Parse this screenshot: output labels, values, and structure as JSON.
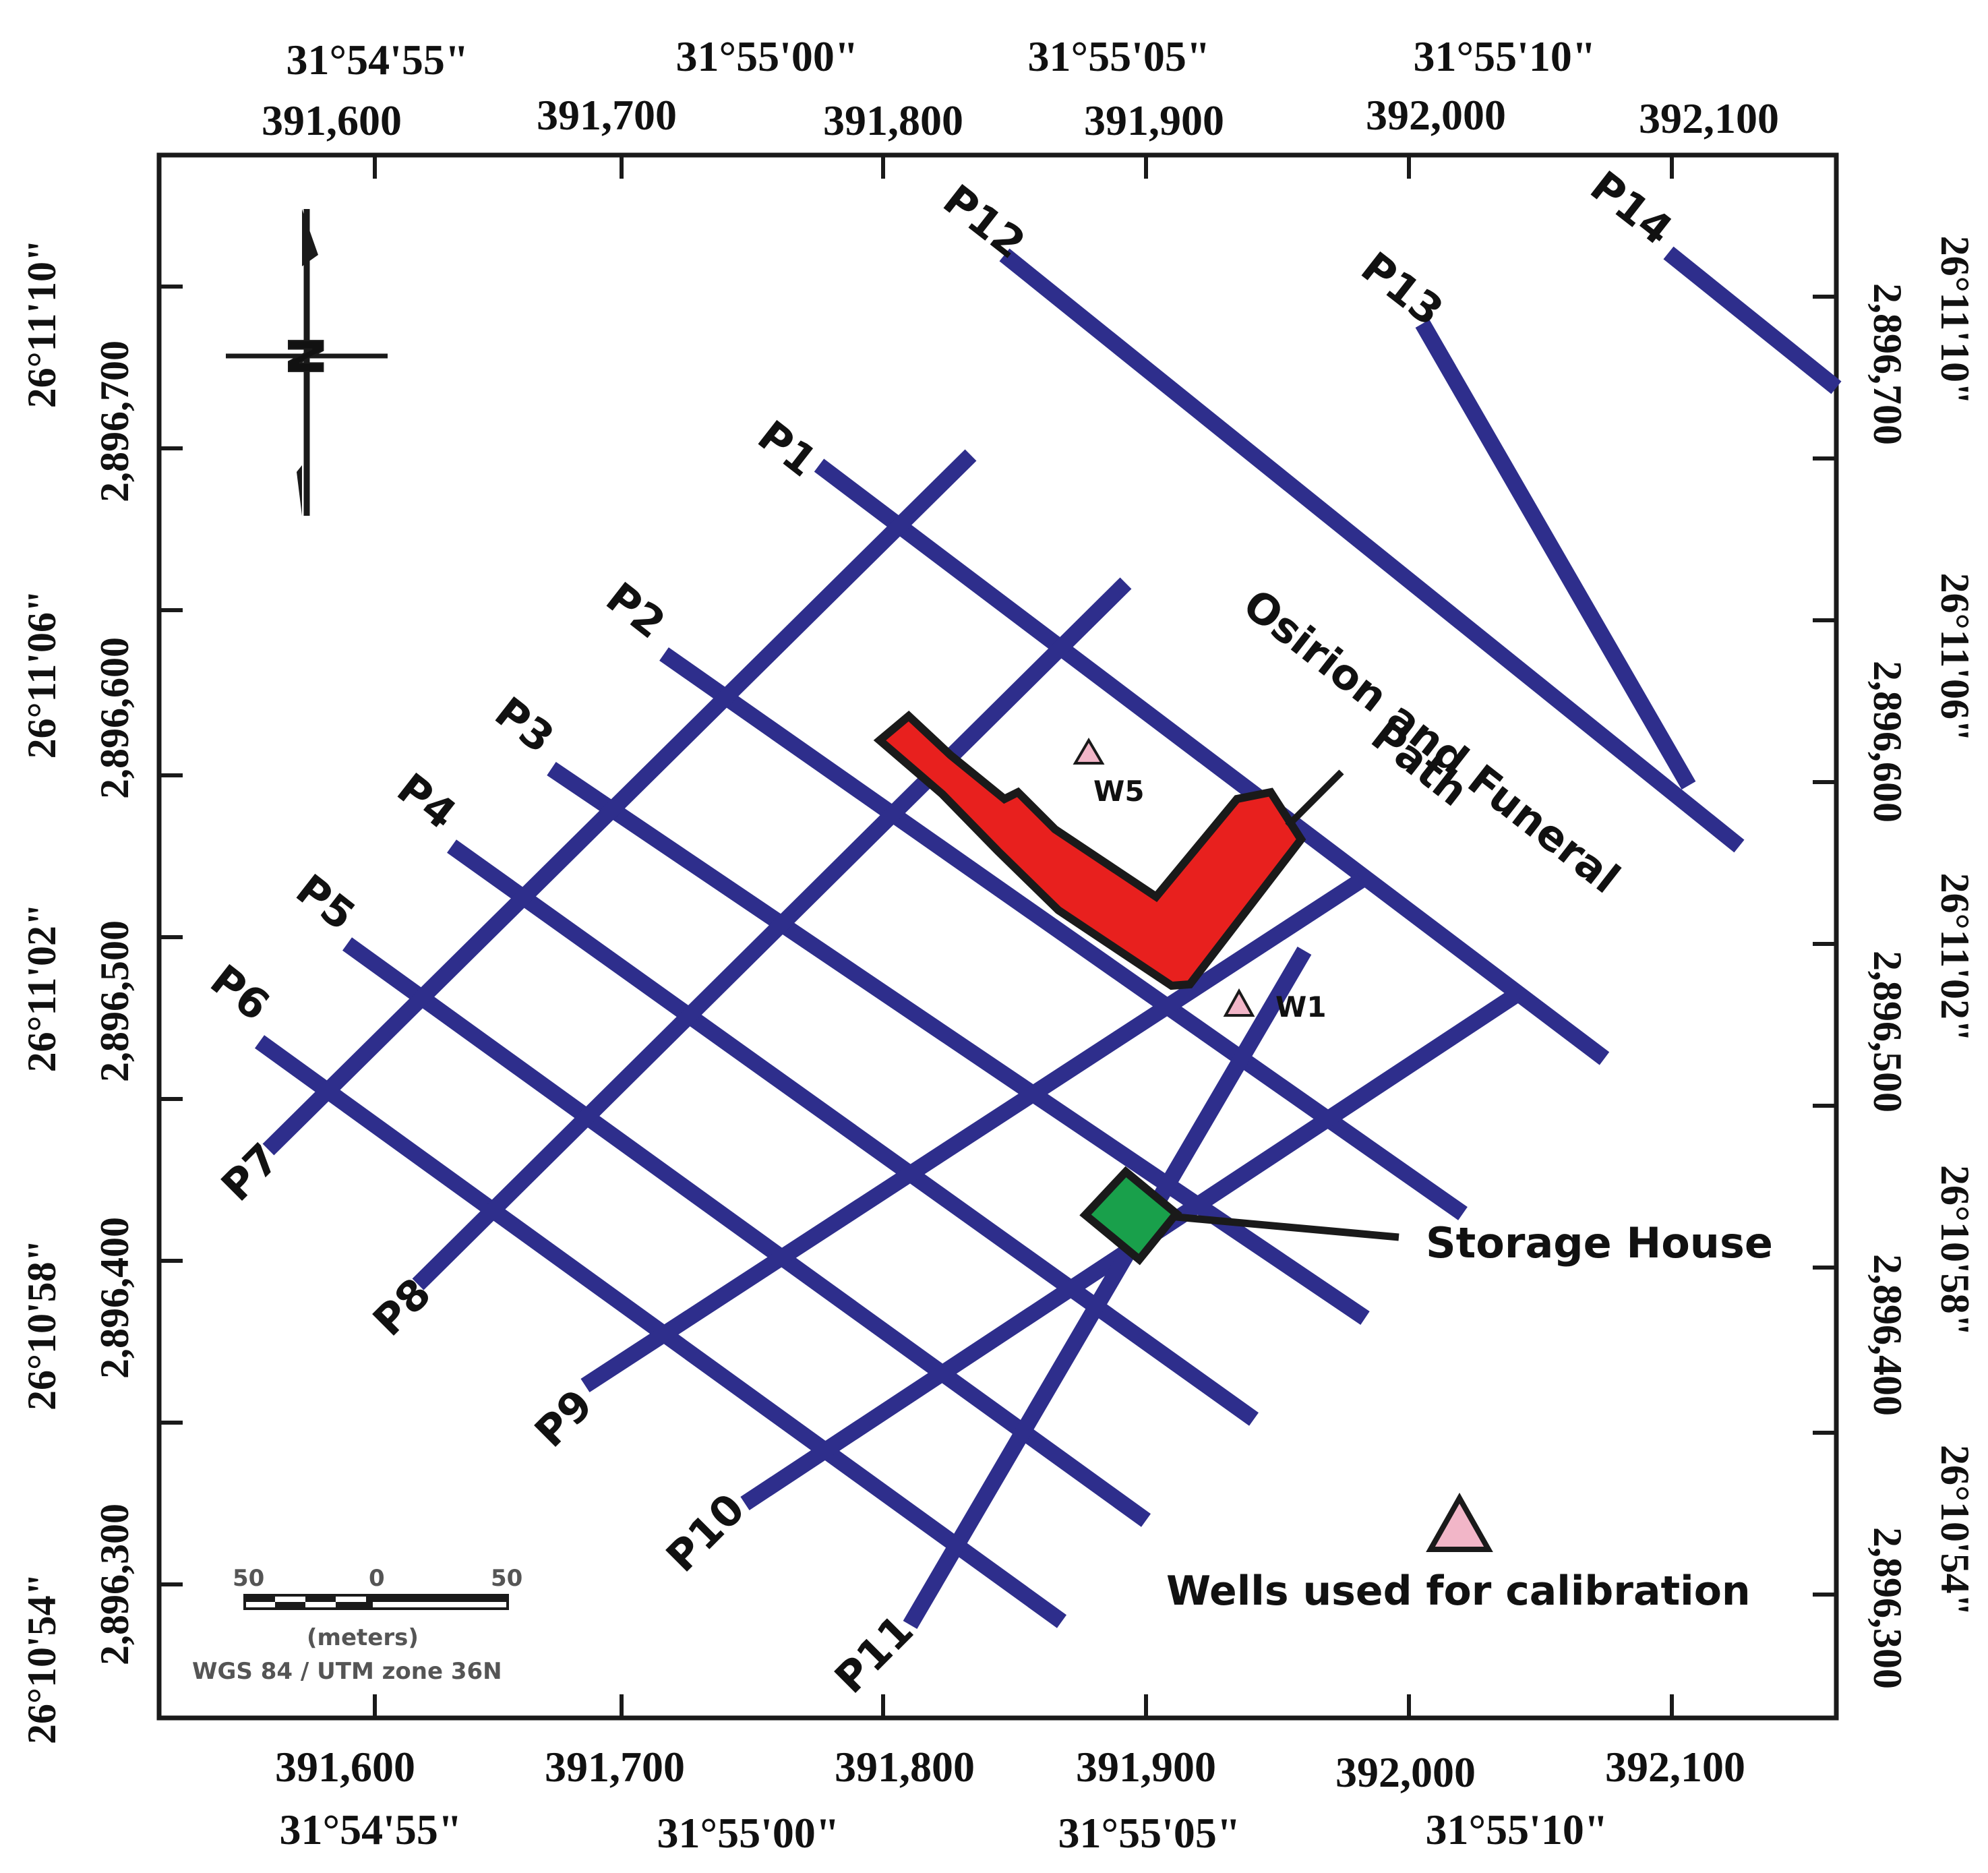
{
  "colors": {
    "profile_line": "#2E2E8C",
    "temple": "#E8201E",
    "storage_house": "#19A04B",
    "well": "#F2B6C8",
    "outline": "#1A1A1A",
    "frame": "#1A1A1A"
  },
  "axes": {
    "top": {
      "latlon": [
        "31°54'55\"",
        "31°55'00\"",
        "31°55'05\"",
        "31°55'10\""
      ],
      "utm": [
        "391,600",
        "391,700",
        "391,800",
        "391,900",
        "392,000",
        "392,100"
      ]
    },
    "bottom": {
      "utm": [
        "391,600",
        "391,700",
        "391,800",
        "391,900",
        "392,000",
        "392,100"
      ],
      "latlon": [
        "31°54'55\"",
        "31°55'00\"",
        "31°55'05\"",
        "31°55'10\""
      ]
    },
    "left": {
      "latlon": [
        "26°11'10\"",
        "26°11'06\"",
        "26°11'02\"",
        "26°10'58\"",
        "26°10'54\""
      ],
      "utm": [
        "2,896,700",
        "2,896,600",
        "2,896,500",
        "2,896,400",
        "2,896,300"
      ]
    },
    "right": {
      "latlon": [
        "26°11'10\"",
        "26°11'06\"",
        "26°11'02\"",
        "26°10'58\"",
        "26°10'54\""
      ],
      "utm": [
        "2,896,700",
        "2,896,600",
        "2,896,500",
        "2,896,400",
        "2,896,300"
      ]
    }
  },
  "profiles": [
    "P1",
    "P2",
    "P3",
    "P4",
    "P5",
    "P6",
    "P7",
    "P8",
    "P9",
    "P10",
    "P11",
    "P12",
    "P13",
    "P14"
  ],
  "wells": [
    {
      "label": "W5"
    },
    {
      "label": "W1"
    }
  ],
  "features": {
    "osirion_line1": "Osirion and Funeral",
    "osirion_line2": "Path",
    "storage_house": "Storage House"
  },
  "legend": {
    "wells_label": "Wells used for calibration"
  },
  "scale_bar": {
    "left": "50",
    "middle": "0",
    "right": "50",
    "units": "(meters)",
    "projection": "WGS 84 / UTM zone 36N"
  },
  "north_arrow": {
    "letter": "N"
  }
}
